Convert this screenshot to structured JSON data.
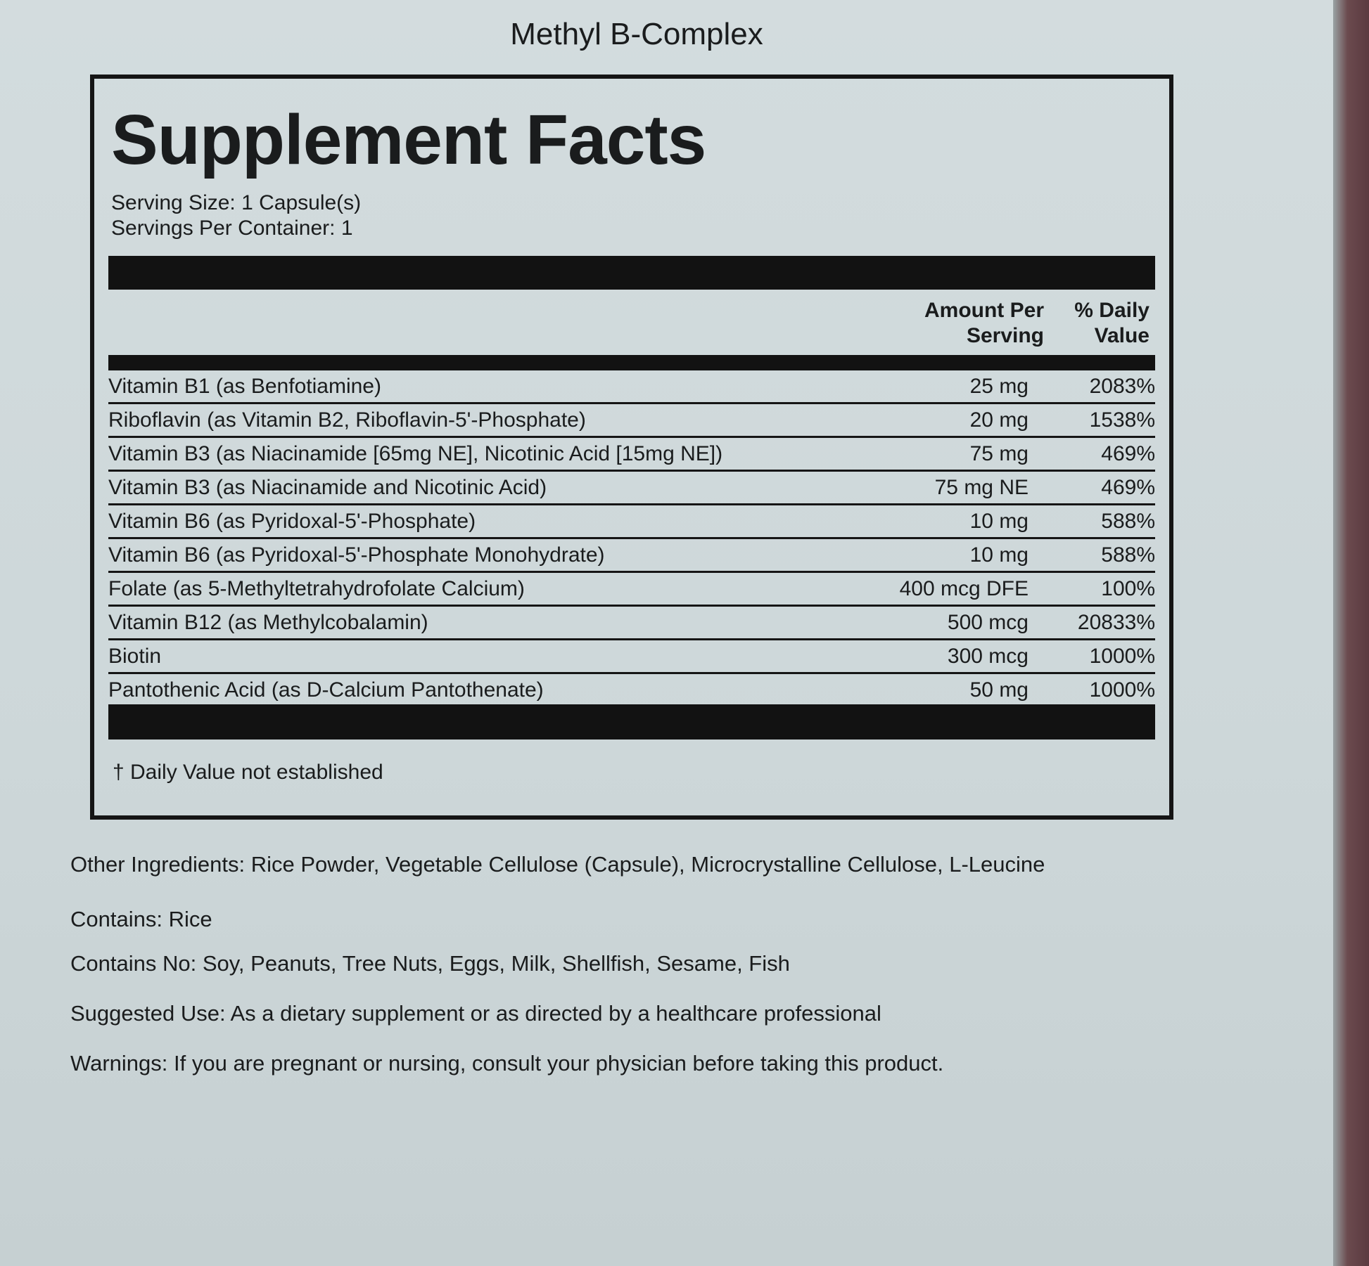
{
  "product_name": "Methyl B-Complex",
  "panel": {
    "title": "Supplement Facts",
    "serving_size": "Serving Size: 1 Capsule(s)",
    "servings_per_container": "Servings Per Container: 1",
    "header_amount_line1": "Amount Per",
    "header_amount_line2": "Serving",
    "header_dv_line1": "% Daily",
    "header_dv_line2": "Value",
    "rows": [
      {
        "name": "Vitamin B1 (as Benfotiamine)",
        "amount": "25 mg",
        "dv": "2083%"
      },
      {
        "name": "Riboflavin (as Vitamin B2, Riboflavin-5'-Phosphate)",
        "amount": "20 mg",
        "dv": "1538%"
      },
      {
        "name": "Vitamin B3 (as Niacinamide [65mg NE], Nicotinic Acid [15mg NE])",
        "amount": "75 mg",
        "dv": "469%"
      },
      {
        "name": "Vitamin B3 (as Niacinamide and Nicotinic Acid)",
        "amount": "75 mg NE",
        "dv": "469%"
      },
      {
        "name": "Vitamin B6 (as Pyridoxal-5'-Phosphate)",
        "amount": "10 mg",
        "dv": "588%"
      },
      {
        "name": "Vitamin B6 (as Pyridoxal-5'-Phosphate Monohydrate)",
        "amount": "10 mg",
        "dv": "588%"
      },
      {
        "name": "Folate (as 5-Methyltetrahydrofolate Calcium)",
        "amount": "400 mcg DFE",
        "dv": "100%"
      },
      {
        "name": "Vitamin B12 (as Methylcobalamin)",
        "amount": "500 mcg",
        "dv": "20833%"
      },
      {
        "name": "Biotin",
        "amount": "300 mcg",
        "dv": "1000%"
      },
      {
        "name": "Pantothenic Acid (as D-Calcium Pantothenate)",
        "amount": "50 mg",
        "dv": "1000%"
      }
    ],
    "footnote": "† Daily Value not established"
  },
  "other_ingredients": "Other Ingredients: Rice Powder, Vegetable Cellulose (Capsule), Microcrystalline Cellulose, L-Leucine",
  "contains": "Contains: Rice",
  "contains_no": "Contains No: Soy, Peanuts, Tree Nuts, Eggs, Milk, Shellfish, Sesame, Fish",
  "suggested_use": "Suggested Use: As a dietary supplement or as directed by a healthcare professional",
  "warnings": "Warnings: If you are pregnant or nursing, consult your physician before taking this product."
}
